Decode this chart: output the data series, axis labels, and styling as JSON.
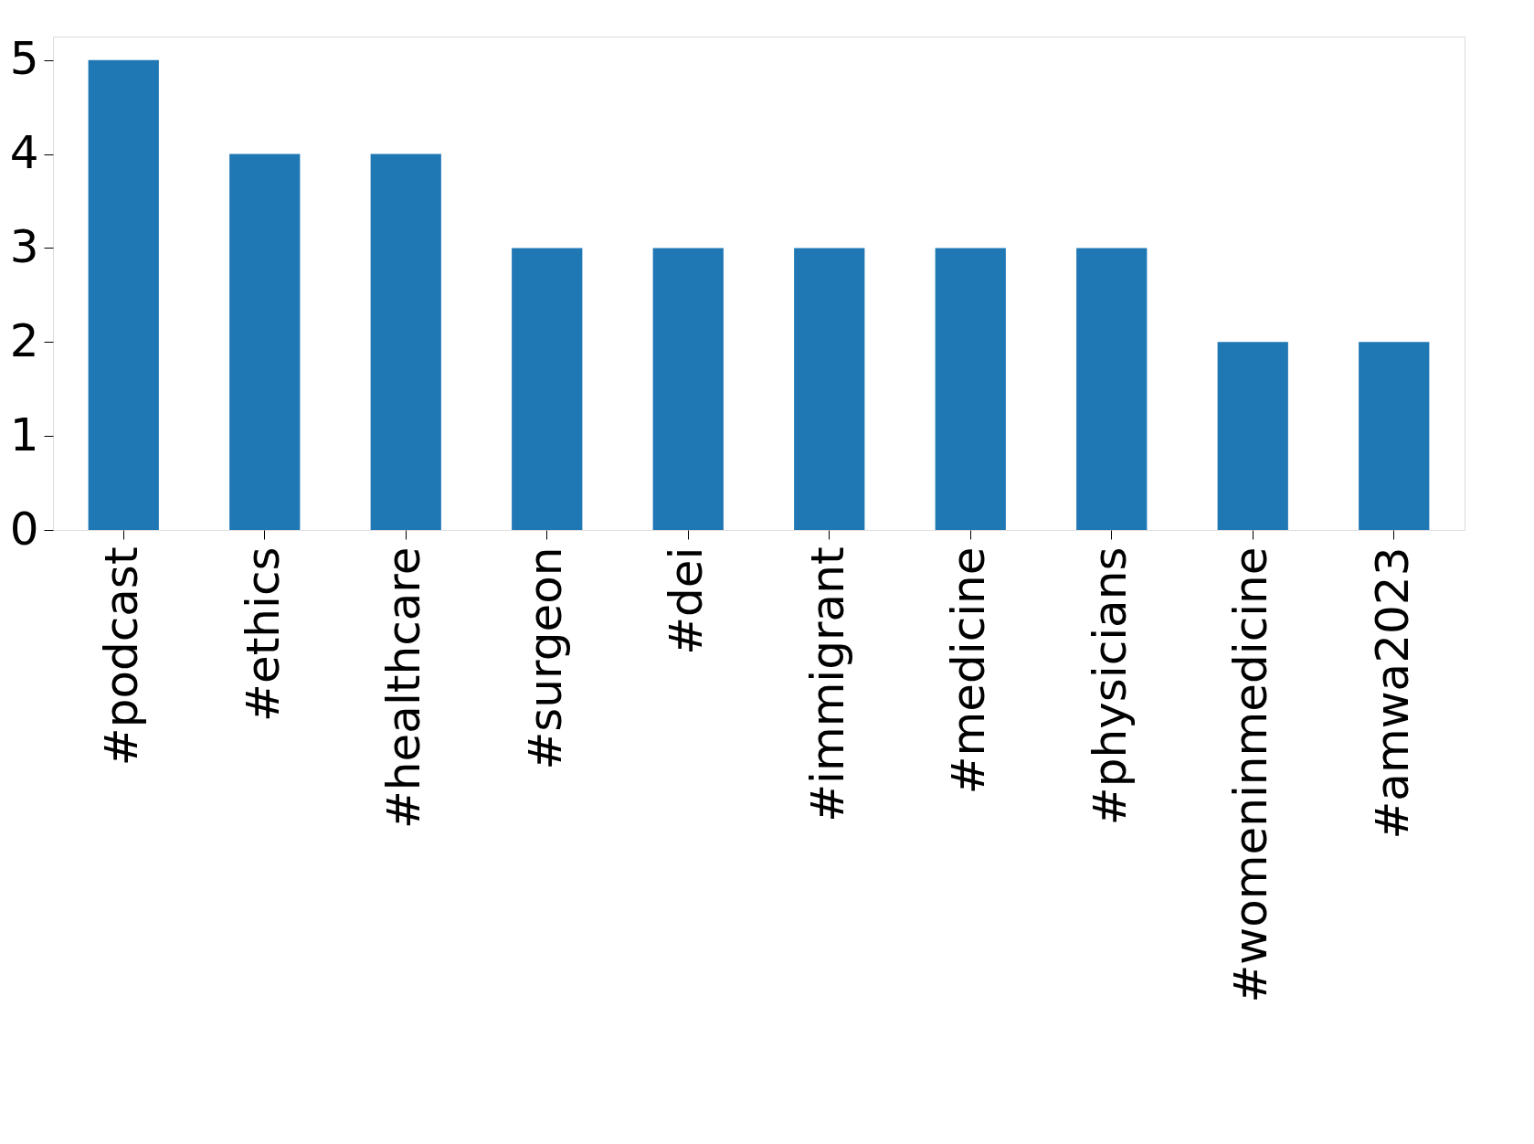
{
  "chart_data": {
    "type": "bar",
    "categories": [
      "#podcast",
      "#ethics",
      "#healthcare",
      "#surgeon",
      "#dei",
      "#immigrant",
      "#medicine",
      "#physicians",
      "#womeninmedicine",
      "#amwa2023"
    ],
    "values": [
      5,
      4,
      4,
      3,
      3,
      3,
      3,
      3,
      2,
      2
    ],
    "color": "#1f77b4",
    "ylim": [
      0,
      5.25
    ],
    "yticks": [
      0,
      1,
      2,
      3,
      4,
      5
    ]
  }
}
